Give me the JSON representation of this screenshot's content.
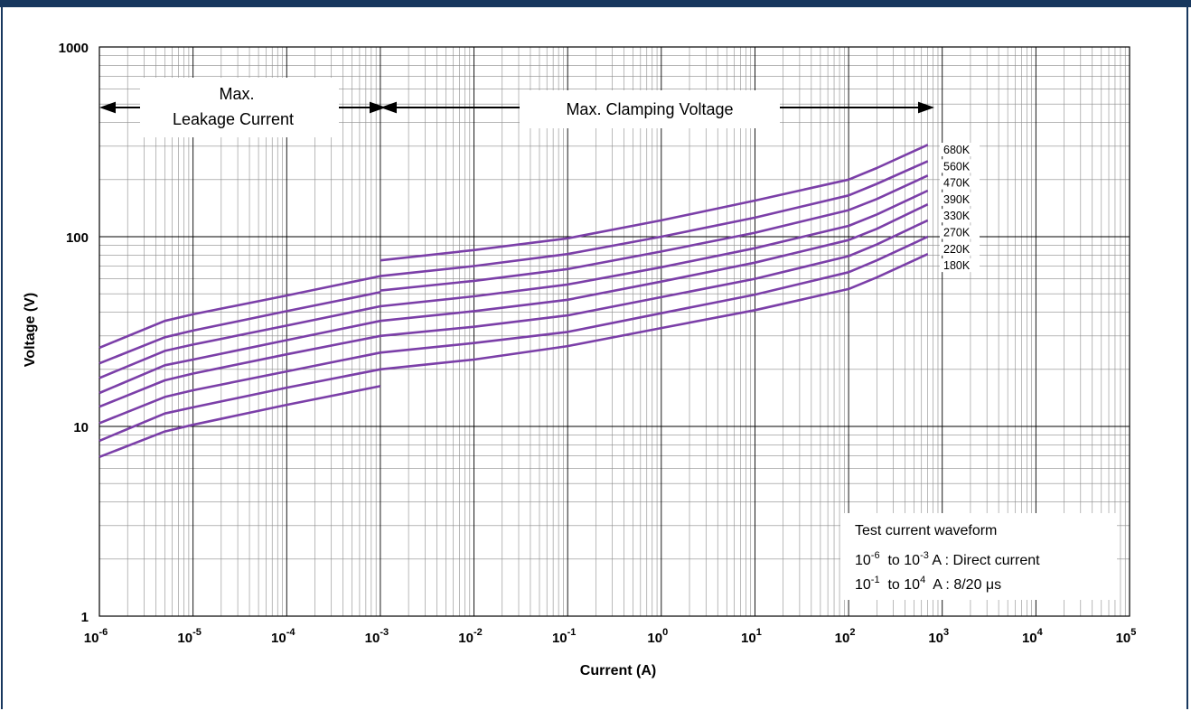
{
  "frame": {
    "accent": "#17375e"
  },
  "chart_data": {
    "type": "line",
    "title": "",
    "xlabel": "Current (A)",
    "ylabel": "Voltage  (V)",
    "x_scale": "log",
    "y_scale": "log",
    "xlim": [
      1e-06,
      100000
    ],
    "ylim": [
      1,
      1000
    ],
    "grid": true,
    "line_color": "#7b3fa8",
    "x_ticks": [
      {
        "base": "10",
        "exp": "-6"
      },
      {
        "base": "10",
        "exp": "-5"
      },
      {
        "base": "10",
        "exp": "-4"
      },
      {
        "base": "10",
        "exp": "-3"
      },
      {
        "base": "10",
        "exp": "-2"
      },
      {
        "base": "10",
        "exp": "-1"
      },
      {
        "base": "10",
        "exp": "0"
      },
      {
        "base": "10",
        "exp": "1"
      },
      {
        "base": "10",
        "exp": "2"
      },
      {
        "base": "10",
        "exp": "3"
      },
      {
        "base": "10",
        "exp": "4"
      },
      {
        "base": "10",
        "exp": "5"
      }
    ],
    "y_ticks": [
      "1",
      "10",
      "100",
      "1000"
    ],
    "series": [
      {
        "name": "680K",
        "leakage": {
          "x": [
            1e-06,
            5e-06,
            1e-05,
            0.0001,
            0.001
          ],
          "y": [
            26,
            36,
            39,
            49,
            62
          ]
        },
        "clamping": {
          "x": [
            0.001,
            0.01,
            0.1,
            1,
            10,
            100,
            200,
            700
          ],
          "y": [
            75,
            85,
            98,
            122,
            155,
            200,
            230,
            305
          ]
        }
      },
      {
        "name": "560K",
        "leakage": {
          "x": [
            1e-06,
            5e-06,
            1e-05,
            0.0001,
            0.001
          ],
          "y": [
            21.5,
            29.5,
            32,
            40.5,
            51
          ]
        },
        "clamping": {
          "x": [
            0.001,
            0.01,
            0.1,
            1,
            10,
            100,
            200,
            700
          ],
          "y": [
            62,
            70,
            81,
            100,
            126,
            165,
            190,
            250
          ]
        }
      },
      {
        "name": "470K",
        "leakage": {
          "x": [
            1e-06,
            5e-06,
            1e-05,
            0.0001,
            0.001
          ],
          "y": [
            18,
            25,
            27,
            34,
            43
          ]
        },
        "clamping": {
          "x": [
            0.001,
            0.01,
            0.1,
            1,
            10,
            100,
            200,
            700
          ],
          "y": [
            52,
            58.5,
            67.5,
            83.5,
            105,
            138,
            158,
            210
          ]
        }
      },
      {
        "name": "390K",
        "leakage": {
          "x": [
            1e-06,
            5e-06,
            1e-05,
            0.0001,
            0.001
          ],
          "y": [
            15,
            21,
            22.5,
            28.5,
            36
          ]
        },
        "clamping": {
          "x": [
            0.001,
            0.01,
            0.1,
            1,
            10,
            100,
            200,
            700
          ],
          "y": [
            43,
            48.5,
            56,
            69,
            87,
            114,
            131,
            175
          ]
        }
      },
      {
        "name": "330K",
        "leakage": {
          "x": [
            1e-06,
            5e-06,
            1e-05,
            0.0001,
            0.001
          ],
          "y": [
            12.7,
            17.5,
            19,
            24,
            30
          ]
        },
        "clamping": {
          "x": [
            0.001,
            0.01,
            0.1,
            1,
            10,
            100,
            200,
            700
          ],
          "y": [
            36,
            40.5,
            46.5,
            58,
            73,
            96,
            110,
            148
          ]
        }
      },
      {
        "name": "270K",
        "leakage": {
          "x": [
            1e-06,
            5e-06,
            1e-05,
            0.0001,
            0.001
          ],
          "y": [
            10.4,
            14.3,
            15.5,
            19.5,
            24.5
          ]
        },
        "clamping": {
          "x": [
            0.001,
            0.01,
            0.1,
            1,
            10,
            100,
            200,
            700
          ],
          "y": [
            30,
            33.5,
            38.5,
            48,
            60,
            79,
            91,
            122
          ]
        }
      },
      {
        "name": "220K",
        "leakage": {
          "x": [
            1e-06,
            5e-06,
            1e-05,
            0.0001,
            0.001
          ],
          "y": [
            8.4,
            11.7,
            12.6,
            16,
            20
          ]
        },
        "clamping": {
          "x": [
            0.001,
            0.01,
            0.1,
            1,
            10,
            100,
            200,
            700
          ],
          "y": [
            24.5,
            27.5,
            31.5,
            39.5,
            49.5,
            65,
            75,
            100
          ]
        }
      },
      {
        "name": "180K",
        "leakage": {
          "x": [
            1e-06,
            5e-06,
            1e-05,
            0.0001,
            0.001
          ],
          "y": [
            6.9,
            9.4,
            10.2,
            13,
            16.3
          ]
        },
        "clamping": {
          "x": [
            0.001,
            0.01,
            0.1,
            1,
            10,
            100,
            200,
            700
          ],
          "y": [
            20,
            22.5,
            26.5,
            33,
            41,
            53,
            61,
            81
          ]
        }
      }
    ],
    "annotations": {
      "leakage_line1": "Max.",
      "leakage_line2": "Leakage Current",
      "clamping": "Max. Clamping Voltage",
      "note_title": "Test current waveform",
      "note_dc": {
        "a_base": "10",
        "a_exp": "-6",
        "mid": "  to ",
        "b_base": "10",
        "b_exp": "-3",
        "tail": " A : Direct current"
      },
      "note_pulse": {
        "a_base": "10",
        "a_exp": "-1",
        "mid": "  to ",
        "b_base": "10",
        "b_exp": "4",
        "tail": "  A : 8/20 μs"
      }
    }
  }
}
